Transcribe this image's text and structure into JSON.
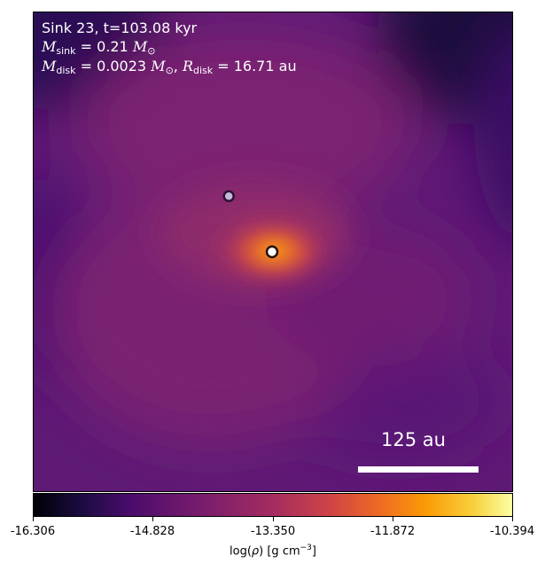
{
  "overlay": {
    "title": "Sink 23, t=103.08 kyr",
    "msink_value": "0.21",
    "mdisk_value": "0.0023",
    "rdisk_value": "16.71",
    "rdisk_unit": "au"
  },
  "scale_bar": {
    "label": "125 au"
  },
  "colorbar": {
    "ticks": [
      "-16.306",
      "-14.828",
      "-13.350",
      "-11.872",
      "-10.394"
    ],
    "label_prefix": "log(",
    "label_rho": "ρ",
    "label_suffix": ") [g cm",
    "label_exp": "−3",
    "label_close": "]",
    "colormap": "inferno",
    "min": -16.306,
    "max": -10.394
  },
  "markers": [
    {
      "name": "sink-primary"
    },
    {
      "name": "sink-secondary"
    }
  ]
}
